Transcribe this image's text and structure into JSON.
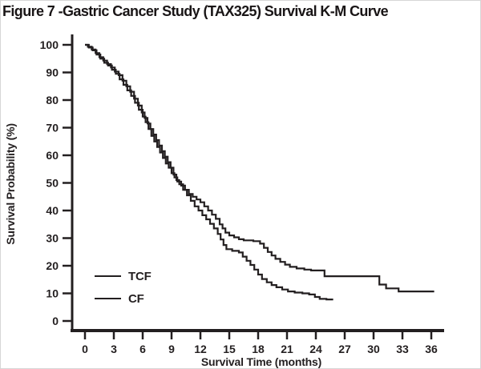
{
  "figure": {
    "title": "Figure 7 -Gastric Cancer Study (TAX325) Survival K-M Curve"
  },
  "chart_data": {
    "type": "line",
    "subtype": "kaplan-meier-step",
    "title": "Figure 7 -Gastric Cancer Study (TAX325) Survival K-M Curve",
    "xlabel": "Survival Time (months)",
    "ylabel": "Survival Probability (%)",
    "xlim": [
      0,
      36
    ],
    "ylim": [
      0,
      100
    ],
    "x_ticks": [
      "0",
      "3",
      "6",
      "9",
      "12",
      "15",
      "18",
      "21",
      "24",
      "27",
      "30",
      "33",
      "36"
    ],
    "y_ticks": [
      "0",
      "10",
      "20",
      "30",
      "40",
      "50",
      "60",
      "70",
      "80",
      "90",
      "100"
    ],
    "grid": false,
    "legend_position": "inside-lower-left",
    "line_color": "#231f20",
    "series": [
      {
        "name": "TCF",
        "points": [
          [
            0,
            100
          ],
          [
            0.4,
            99
          ],
          [
            0.8,
            98
          ],
          [
            1.2,
            96.5
          ],
          [
            1.6,
            95
          ],
          [
            2,
            93.5
          ],
          [
            2.4,
            92.5
          ],
          [
            2.8,
            91
          ],
          [
            3.2,
            89.5
          ],
          [
            3.6,
            87.5
          ],
          [
            4,
            85.5
          ],
          [
            4.4,
            83.5
          ],
          [
            4.8,
            81.5
          ],
          [
            5.2,
            79
          ],
          [
            5.6,
            76.5
          ],
          [
            6,
            74
          ],
          [
            6.3,
            72
          ],
          [
            6.6,
            69.5
          ],
          [
            6.9,
            67
          ],
          [
            7.2,
            65
          ],
          [
            7.5,
            63
          ],
          [
            7.8,
            61
          ],
          [
            8.1,
            59
          ],
          [
            8.4,
            57
          ],
          [
            8.7,
            55.5
          ],
          [
            9,
            53.5
          ],
          [
            9.3,
            52
          ],
          [
            9.6,
            50.5
          ],
          [
            10,
            49
          ],
          [
            10.4,
            47.5
          ],
          [
            10.8,
            46
          ],
          [
            11.2,
            45
          ],
          [
            11.6,
            44
          ],
          [
            12,
            43
          ],
          [
            12.4,
            41.5
          ],
          [
            12.8,
            40
          ],
          [
            13.2,
            38.5
          ],
          [
            13.6,
            37
          ],
          [
            14,
            35
          ],
          [
            14.3,
            33.5
          ],
          [
            14.6,
            32
          ],
          [
            15,
            31
          ],
          [
            15.5,
            30.3
          ],
          [
            16,
            29.6
          ],
          [
            16.5,
            29.2
          ],
          [
            17.5,
            28.9
          ],
          [
            18.2,
            28
          ],
          [
            18.6,
            26.5
          ],
          [
            19,
            25
          ],
          [
            19.4,
            23.7
          ],
          [
            19.8,
            22.5
          ],
          [
            20.3,
            21.4
          ],
          [
            20.8,
            20.4
          ],
          [
            21.3,
            19.6
          ],
          [
            22,
            19
          ],
          [
            22.8,
            18.6
          ],
          [
            23.5,
            18.3
          ],
          [
            24.9,
            16.2
          ],
          [
            30.6,
            13.2
          ],
          [
            31.3,
            11.8
          ],
          [
            32.6,
            10.7
          ],
          [
            36.3,
            10.7
          ]
        ]
      },
      {
        "name": "CF",
        "points": [
          [
            0,
            100
          ],
          [
            0.3,
            99.3
          ],
          [
            0.7,
            98.3
          ],
          [
            1.1,
            97
          ],
          [
            1.5,
            95.5
          ],
          [
            1.9,
            94.3
          ],
          [
            2.3,
            93
          ],
          [
            2.7,
            91.8
          ],
          [
            3.1,
            90.3
          ],
          [
            3.5,
            89
          ],
          [
            3.9,
            87
          ],
          [
            4.3,
            85
          ],
          [
            4.7,
            83
          ],
          [
            5.1,
            80.5
          ],
          [
            5.5,
            78
          ],
          [
            5.9,
            75.5
          ],
          [
            6.2,
            73.5
          ],
          [
            6.5,
            71.5
          ],
          [
            6.8,
            69.5
          ],
          [
            7.1,
            67.5
          ],
          [
            7.4,
            65.5
          ],
          [
            7.7,
            63.5
          ],
          [
            8,
            61.5
          ],
          [
            8.3,
            59.5
          ],
          [
            8.6,
            57.5
          ],
          [
            8.9,
            55.5
          ],
          [
            9.2,
            53
          ],
          [
            9.5,
            51
          ],
          [
            9.8,
            49.5
          ],
          [
            10.2,
            47.5
          ],
          [
            10.6,
            45.5
          ],
          [
            11,
            43.5
          ],
          [
            11.4,
            41.5
          ],
          [
            11.8,
            40
          ],
          [
            12.2,
            38.3
          ],
          [
            12.6,
            36.8
          ],
          [
            13,
            35.2
          ],
          [
            13.4,
            33.5
          ],
          [
            13.8,
            31.5
          ],
          [
            14.1,
            29.5
          ],
          [
            14.4,
            27.5
          ],
          [
            14.7,
            26
          ],
          [
            15.3,
            25.4
          ],
          [
            16,
            24.8
          ],
          [
            16.4,
            23.3
          ],
          [
            16.8,
            21.8
          ],
          [
            17.2,
            20.3
          ],
          [
            17.6,
            18.6
          ],
          [
            18,
            16.8
          ],
          [
            18.4,
            15.2
          ],
          [
            18.9,
            14
          ],
          [
            19.4,
            13
          ],
          [
            19.9,
            12.2
          ],
          [
            20.5,
            11.4
          ],
          [
            21.1,
            10.7
          ],
          [
            21.8,
            10.3
          ],
          [
            22.6,
            10
          ],
          [
            23.3,
            9.6
          ],
          [
            23.9,
            8.7
          ],
          [
            24.4,
            8
          ],
          [
            25.1,
            7.8
          ],
          [
            25.8,
            7.8
          ]
        ]
      }
    ]
  }
}
